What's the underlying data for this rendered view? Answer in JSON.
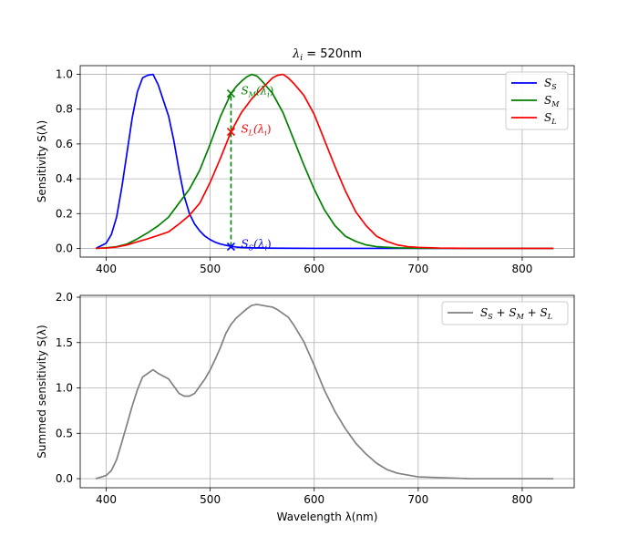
{
  "chart_data": [
    {
      "type": "line",
      "title": "λ_i = 520nm",
      "title_parts": {
        "symbol": "λ",
        "sub": "i",
        "rest": " = 520nm"
      },
      "xlabel": "",
      "ylabel": "Sensitivity S(λ)",
      "xlim": [
        375,
        850
      ],
      "ylim": [
        -0.05,
        1.05
      ],
      "xticks": [
        400,
        500,
        600,
        700,
        800
      ],
      "yticks": [
        0.0,
        0.2,
        0.4,
        0.6,
        0.8,
        1.0
      ],
      "ytick_labels": [
        "0.0",
        "0.2",
        "0.4",
        "0.6",
        "0.8",
        "1.0"
      ],
      "grid": true,
      "legend_position": "top-right",
      "series": [
        {
          "name": "S_S",
          "legend_label": {
            "main": "S",
            "sub": "S"
          },
          "color": "#0000ff",
          "x": [
            390,
            400,
            405,
            410,
            415,
            420,
            425,
            430,
            435,
            440,
            445,
            450,
            455,
            460,
            465,
            470,
            475,
            480,
            485,
            490,
            495,
            500,
            505,
            510,
            515,
            520,
            525,
            530,
            540,
            560,
            600,
            700,
            800,
            830
          ],
          "y": [
            0.0,
            0.03,
            0.08,
            0.18,
            0.35,
            0.55,
            0.75,
            0.9,
            0.98,
            0.995,
            1.0,
            0.94,
            0.85,
            0.76,
            0.62,
            0.45,
            0.3,
            0.2,
            0.14,
            0.1,
            0.07,
            0.05,
            0.035,
            0.025,
            0.018,
            0.012,
            0.008,
            0.005,
            0.003,
            0.001,
            0.0,
            0.0,
            0.0,
            0.0
          ]
        },
        {
          "name": "S_M",
          "legend_label": {
            "main": "S",
            "sub": "M"
          },
          "color": "#008000",
          "x": [
            390,
            400,
            410,
            420,
            430,
            440,
            450,
            460,
            470,
            480,
            490,
            500,
            510,
            520,
            525,
            530,
            535,
            540,
            545,
            550,
            560,
            570,
            580,
            590,
            600,
            610,
            620,
            630,
            640,
            650,
            660,
            680,
            700,
            750,
            830
          ],
          "y": [
            0.0,
            0.003,
            0.01,
            0.025,
            0.055,
            0.09,
            0.13,
            0.18,
            0.26,
            0.34,
            0.45,
            0.6,
            0.76,
            0.89,
            0.93,
            0.96,
            0.985,
            1.0,
            0.99,
            0.96,
            0.89,
            0.78,
            0.63,
            0.48,
            0.34,
            0.22,
            0.13,
            0.07,
            0.04,
            0.02,
            0.01,
            0.003,
            0.001,
            0.0,
            0.0
          ]
        },
        {
          "name": "S_L",
          "legend_label": {
            "main": "S",
            "sub": "L"
          },
          "color": "#ff0000",
          "x": [
            390,
            400,
            410,
            420,
            430,
            440,
            450,
            460,
            470,
            480,
            490,
            500,
            510,
            520,
            530,
            540,
            550,
            560,
            565,
            570,
            575,
            580,
            590,
            600,
            610,
            620,
            630,
            640,
            650,
            660,
            670,
            680,
            690,
            700,
            720,
            750,
            830
          ],
          "y": [
            0.0,
            0.002,
            0.008,
            0.02,
            0.038,
            0.055,
            0.075,
            0.095,
            0.14,
            0.19,
            0.26,
            0.38,
            0.52,
            0.67,
            0.78,
            0.86,
            0.92,
            0.98,
            0.995,
            1.0,
            0.98,
            0.95,
            0.88,
            0.77,
            0.62,
            0.47,
            0.33,
            0.21,
            0.13,
            0.07,
            0.04,
            0.02,
            0.01,
            0.006,
            0.002,
            0.0,
            0.0
          ]
        }
      ],
      "markers": [
        {
          "name": "S_S(λ_i)",
          "x": 520,
          "y": 0.01,
          "color": "#0000ff",
          "label": {
            "main": "S",
            "sub": "S",
            "rest": "(λ",
            "sub2": "i",
            "close": ")"
          }
        },
        {
          "name": "S_M(λ_i)",
          "x": 520,
          "y": 0.89,
          "color": "#008000",
          "label": {
            "main": "S",
            "sub": "M",
            "rest": "(λ",
            "sub2": "i",
            "close": ")"
          }
        },
        {
          "name": "S_L(λ_i)",
          "x": 520,
          "y": 0.67,
          "color": "#ff0000",
          "label": {
            "main": "S",
            "sub": "L",
            "rest": "(λ",
            "sub2": "i",
            "close": ")"
          }
        }
      ],
      "vline": {
        "x": 520,
        "y_from": 0.01,
        "y_to": 0.89,
        "color": "#008000",
        "style": "dashed"
      }
    },
    {
      "type": "line",
      "title": "",
      "xlabel": "Wavelength λ(nm)",
      "ylabel": "Summed sensitivity S(λ)",
      "xlim": [
        375,
        850
      ],
      "ylim": [
        -0.1,
        2.02
      ],
      "xticks": [
        400,
        500,
        600,
        700,
        800
      ],
      "yticks": [
        0.0,
        0.5,
        1.0,
        1.5,
        2.0
      ],
      "ytick_labels": [
        "0.0",
        "0.5",
        "1.0",
        "1.5",
        "2.0"
      ],
      "grid": true,
      "legend_position": "top-right",
      "series": [
        {
          "name": "S_S + S_M + S_L",
          "legend_label": {
            "main": "S",
            "sub": "S",
            "plus1": " + S",
            "sub1b": "M",
            "plus2": " + S",
            "sub2b": "L"
          },
          "color": "#808080",
          "x": [
            390,
            400,
            405,
            410,
            415,
            420,
            425,
            430,
            435,
            440,
            445,
            450,
            455,
            460,
            465,
            470,
            475,
            480,
            485,
            490,
            495,
            500,
            505,
            510,
            515,
            520,
            525,
            530,
            535,
            540,
            545,
            550,
            555,
            560,
            565,
            570,
            575,
            580,
            590,
            600,
            610,
            620,
            630,
            640,
            650,
            660,
            670,
            680,
            700,
            750,
            830
          ],
          "y": [
            0.0,
            0.035,
            0.09,
            0.21,
            0.4,
            0.6,
            0.8,
            0.98,
            1.12,
            1.16,
            1.2,
            1.16,
            1.13,
            1.1,
            1.02,
            0.94,
            0.91,
            0.91,
            0.94,
            1.02,
            1.1,
            1.2,
            1.32,
            1.45,
            1.6,
            1.7,
            1.77,
            1.82,
            1.87,
            1.91,
            1.92,
            1.91,
            1.9,
            1.89,
            1.86,
            1.82,
            1.78,
            1.7,
            1.51,
            1.25,
            0.97,
            0.74,
            0.55,
            0.39,
            0.27,
            0.17,
            0.1,
            0.06,
            0.02,
            0.0,
            0.0
          ]
        }
      ]
    }
  ]
}
